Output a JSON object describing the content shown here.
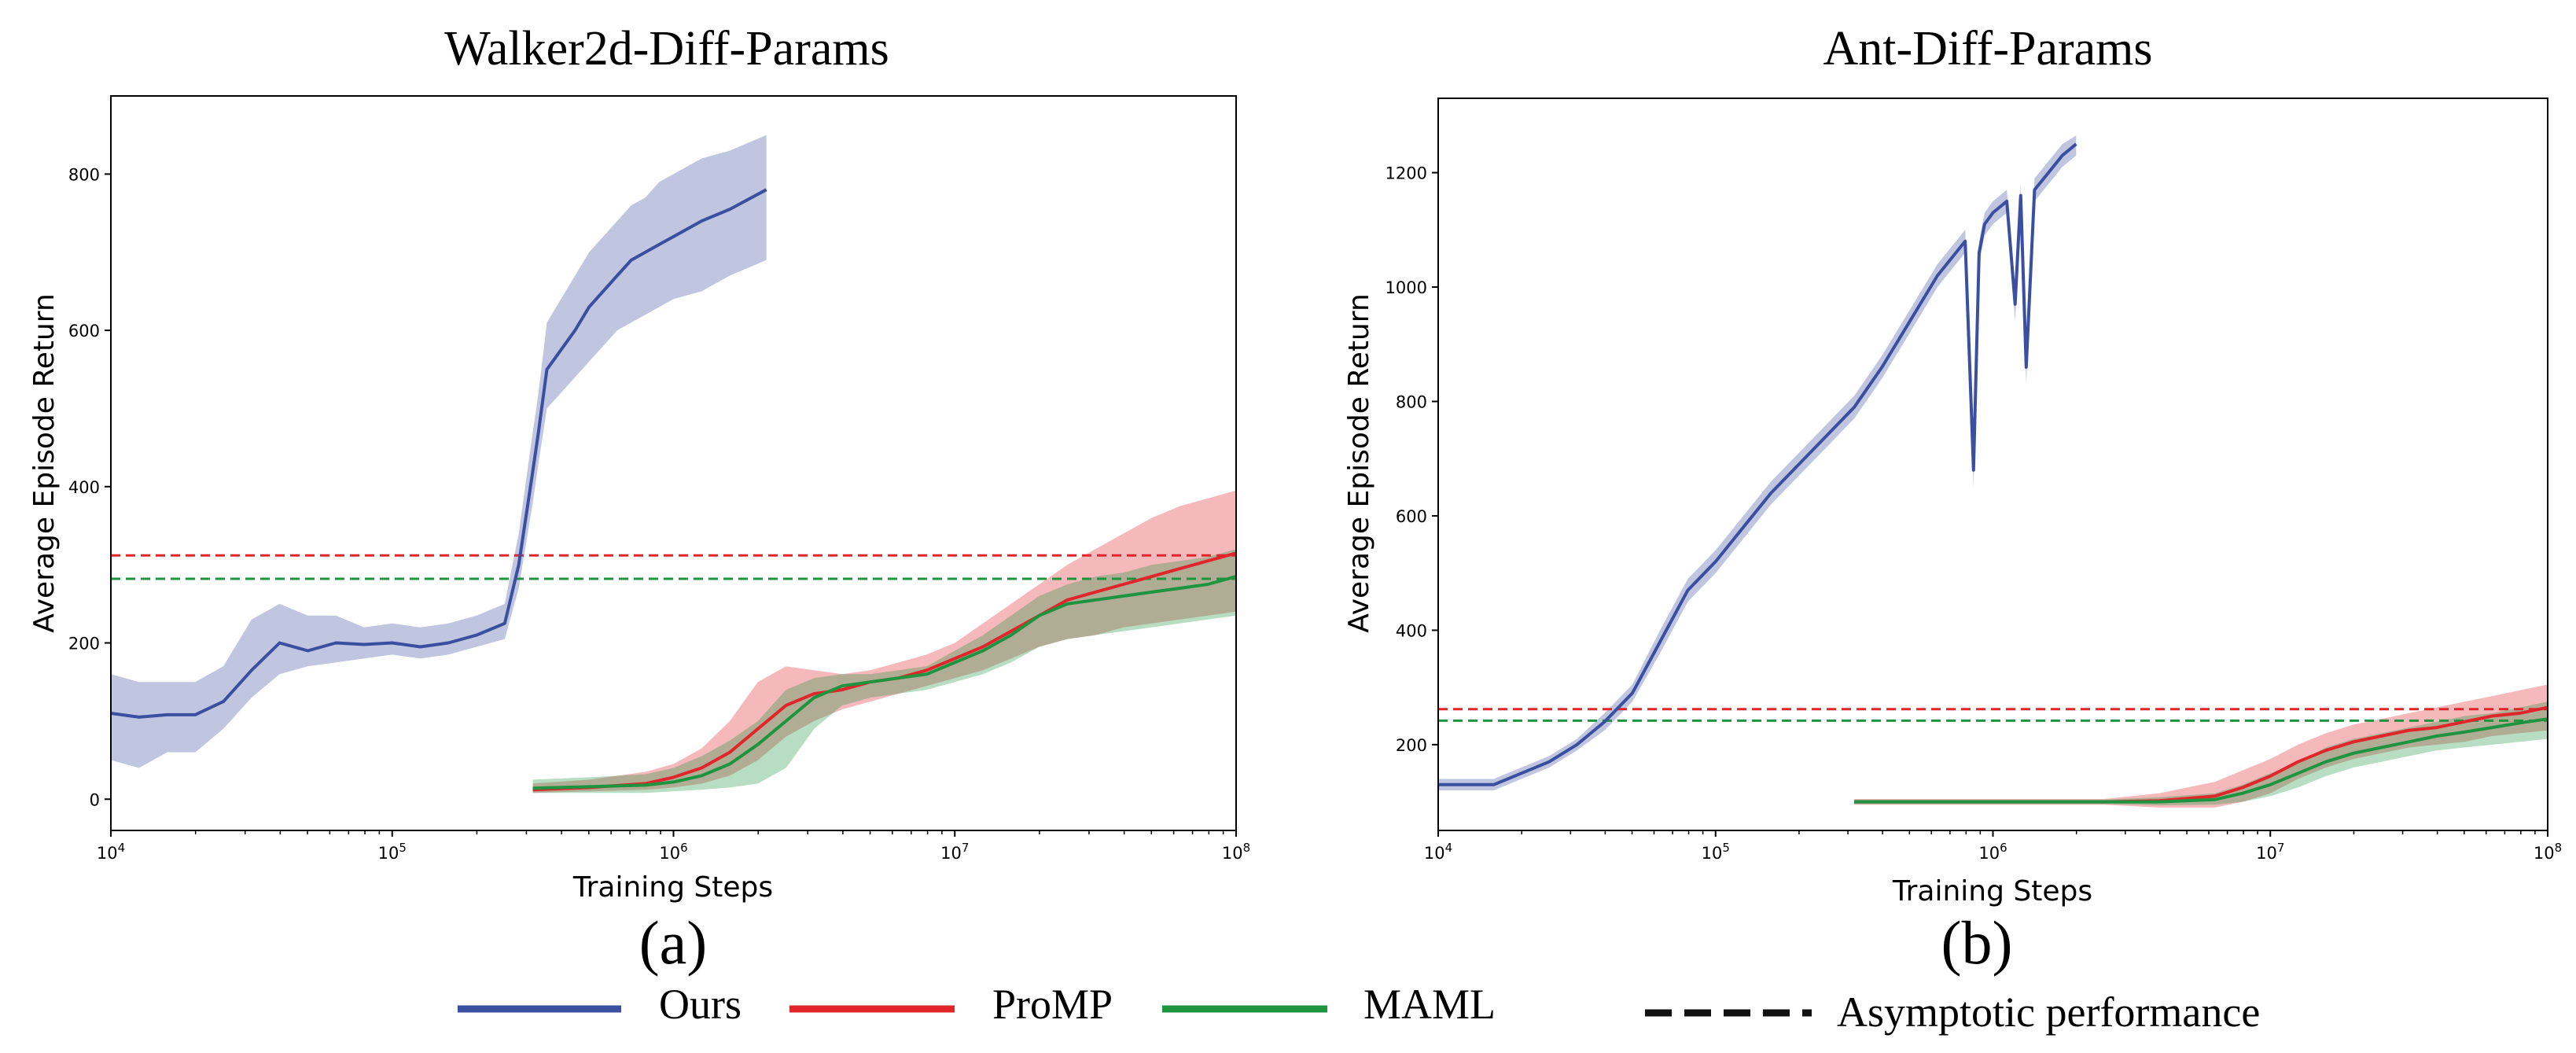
{
  "colors": {
    "ours": "#3a4fa0",
    "promp": "#e0262b",
    "maml": "#1e9440",
    "asymptotic_promp": "#e0262b",
    "asymptotic_maml": "#1e9440"
  },
  "legend": [
    {
      "key": "ours",
      "label": "Ours",
      "style": "solid",
      "color": "#3a4fa0"
    },
    {
      "key": "promp",
      "label": "ProMP",
      "style": "solid",
      "color": "#e0262b"
    },
    {
      "key": "maml",
      "label": "MAML",
      "style": "solid",
      "color": "#1e9440"
    },
    {
      "key": "asym",
      "label": "Asymptotic performance",
      "style": "dashed",
      "color": "#111111"
    }
  ],
  "chart_data": [
    {
      "type": "line",
      "title": "Walker2d-Diff-Params",
      "panel_label": "(a)",
      "xlabel": "Training Steps",
      "ylabel": "Average Episode Return",
      "xscale": "log",
      "xlim": [
        10000,
        100000000
      ],
      "ylim": [
        -40,
        900
      ],
      "xticks": [
        4,
        5,
        6,
        7,
        8
      ],
      "yticks": [
        0,
        200,
        400,
        600,
        800
      ],
      "grid": false,
      "series": [
        {
          "name": "Ours",
          "color_key": "ours",
          "log10_x": [
            4.0,
            4.1,
            4.2,
            4.3,
            4.4,
            4.5,
            4.6,
            4.7,
            4.8,
            4.9,
            5.0,
            5.1,
            5.2,
            5.3,
            5.4,
            5.45,
            5.5,
            5.52,
            5.55,
            5.6,
            5.65,
            5.7,
            5.75,
            5.8,
            5.85,
            5.9,
            5.95,
            6.0,
            6.1,
            6.2,
            6.33
          ],
          "y": [
            110,
            105,
            108,
            108,
            125,
            165,
            200,
            190,
            200,
            198,
            200,
            195,
            200,
            210,
            225,
            300,
            420,
            470,
            550,
            575,
            600,
            630,
            650,
            670,
            690,
            700,
            710,
            720,
            740,
            755,
            780
          ],
          "lo": [
            50,
            40,
            60,
            60,
            90,
            130,
            160,
            170,
            175,
            180,
            185,
            180,
            185,
            195,
            205,
            270,
            380,
            430,
            500,
            520,
            540,
            560,
            580,
            600,
            610,
            620,
            630,
            640,
            650,
            670,
            690
          ],
          "hi": [
            160,
            150,
            150,
            150,
            170,
            230,
            250,
            235,
            235,
            220,
            225,
            220,
            225,
            235,
            250,
            340,
            470,
            520,
            610,
            640,
            670,
            700,
            720,
            740,
            760,
            770,
            790,
            800,
            820,
            830,
            850
          ]
        },
        {
          "name": "ProMP",
          "color_key": "promp",
          "log10_x": [
            5.5,
            5.7,
            5.9,
            6.0,
            6.1,
            6.2,
            6.3,
            6.4,
            6.5,
            6.6,
            6.7,
            6.8,
            6.9,
            7.0,
            7.1,
            7.2,
            7.3,
            7.4,
            7.5,
            7.6,
            7.7,
            7.8,
            7.9,
            8.0
          ],
          "y": [
            12,
            15,
            20,
            28,
            40,
            60,
            90,
            120,
            135,
            140,
            150,
            155,
            165,
            180,
            195,
            215,
            235,
            255,
            265,
            275,
            285,
            295,
            305,
            315
          ],
          "lo": [
            8,
            10,
            12,
            15,
            20,
            30,
            50,
            80,
            100,
            115,
            125,
            135,
            145,
            155,
            165,
            180,
            195,
            205,
            210,
            220,
            225,
            230,
            235,
            240
          ],
          "hi": [
            20,
            25,
            35,
            45,
            65,
            100,
            150,
            170,
            165,
            160,
            165,
            175,
            185,
            200,
            225,
            250,
            275,
            300,
            320,
            340,
            360,
            375,
            385,
            395
          ]
        },
        {
          "name": "MAML",
          "color_key": "maml",
          "log10_x": [
            5.5,
            5.7,
            5.9,
            6.0,
            6.1,
            6.2,
            6.3,
            6.4,
            6.5,
            6.6,
            6.7,
            6.8,
            6.9,
            7.0,
            7.1,
            7.2,
            7.3,
            7.4,
            7.5,
            7.6,
            7.7,
            7.8,
            7.9,
            8.0
          ],
          "y": [
            14,
            16,
            18,
            22,
            30,
            45,
            70,
            100,
            130,
            145,
            150,
            155,
            160,
            175,
            190,
            210,
            235,
            250,
            255,
            260,
            265,
            270,
            275,
            285
          ],
          "lo": [
            8,
            8,
            8,
            10,
            12,
            15,
            20,
            40,
            90,
            120,
            130,
            135,
            140,
            150,
            160,
            175,
            195,
            205,
            210,
            215,
            220,
            225,
            230,
            235
          ],
          "hi": [
            25,
            28,
            32,
            40,
            55,
            75,
            100,
            140,
            155,
            160,
            160,
            165,
            170,
            190,
            210,
            235,
            260,
            275,
            285,
            290,
            300,
            305,
            310,
            320
          ]
        }
      ],
      "asymptotic": [
        {
          "name": "ProMP",
          "color_key": "asymptotic_promp",
          "y": 312
        },
        {
          "name": "MAML",
          "color_key": "asymptotic_maml",
          "y": 282
        }
      ]
    },
    {
      "type": "line",
      "title": "Ant-Diff-Params",
      "panel_label": "(b)",
      "xlabel": "Training Steps",
      "ylabel": "Average Episode Return",
      "xscale": "log",
      "xlim": [
        10000,
        100000000
      ],
      "ylim": [
        50,
        1330
      ],
      "xticks": [
        4,
        5,
        6,
        7,
        8
      ],
      "yticks": [
        200,
        400,
        600,
        800,
        1000,
        1200
      ],
      "grid": false,
      "series": [
        {
          "name": "Ours",
          "color_key": "ours",
          "log10_x": [
            4.0,
            4.1,
            4.2,
            4.3,
            4.4,
            4.5,
            4.6,
            4.7,
            4.8,
            4.9,
            5.0,
            5.1,
            5.2,
            5.3,
            5.4,
            5.5,
            5.6,
            5.7,
            5.8,
            5.9,
            5.93,
            5.95,
            5.97,
            6.0,
            6.05,
            6.08,
            6.1,
            6.12,
            6.15,
            6.2,
            6.25,
            6.3
          ],
          "y": [
            130,
            130,
            130,
            150,
            170,
            200,
            240,
            290,
            380,
            470,
            520,
            580,
            640,
            690,
            740,
            790,
            860,
            940,
            1020,
            1080,
            680,
            1060,
            1110,
            1130,
            1150,
            970,
            1160,
            860,
            1170,
            1200,
            1230,
            1250
          ],
          "lo": [
            120,
            120,
            120,
            140,
            160,
            190,
            225,
            275,
            360,
            450,
            500,
            560,
            620,
            670,
            720,
            770,
            840,
            920,
            1000,
            1060,
            650,
            1040,
            1090,
            1110,
            1130,
            940,
            1140,
            830,
            1150,
            1180,
            1210,
            1230
          ],
          "hi": [
            140,
            140,
            140,
            160,
            180,
            210,
            255,
            305,
            400,
            490,
            540,
            600,
            660,
            710,
            760,
            810,
            880,
            960,
            1040,
            1100,
            710,
            1080,
            1130,
            1150,
            1170,
            1000,
            1180,
            890,
            1190,
            1220,
            1250,
            1265
          ]
        },
        {
          "name": "ProMP",
          "color_key": "promp",
          "log10_x": [
            5.5,
            5.8,
            6.1,
            6.4,
            6.6,
            6.8,
            6.9,
            7.0,
            7.1,
            7.2,
            7.3,
            7.4,
            7.5,
            7.6,
            7.7,
            7.8,
            7.9,
            8.0
          ],
          "y": [
            100,
            100,
            100,
            100,
            102,
            110,
            125,
            145,
            170,
            190,
            205,
            215,
            225,
            230,
            240,
            250,
            255,
            265
          ],
          "lo": [
            95,
            95,
            95,
            95,
            90,
            90,
            100,
            115,
            140,
            160,
            175,
            185,
            195,
            200,
            205,
            215,
            220,
            225
          ],
          "hi": [
            105,
            105,
            105,
            105,
            115,
            135,
            155,
            175,
            200,
            220,
            235,
            245,
            255,
            265,
            275,
            285,
            295,
            305
          ]
        },
        {
          "name": "MAML",
          "color_key": "maml",
          "log10_x": [
            5.5,
            5.8,
            6.1,
            6.4,
            6.6,
            6.8,
            6.9,
            7.0,
            7.1,
            7.2,
            7.3,
            7.4,
            7.5,
            7.6,
            7.7,
            7.8,
            7.9,
            8.0
          ],
          "y": [
            100,
            100,
            100,
            100,
            100,
            104,
            115,
            130,
            150,
            170,
            185,
            195,
            205,
            215,
            222,
            230,
            238,
            245
          ],
          "lo": [
            96,
            96,
            96,
            96,
            94,
            95,
            100,
            110,
            125,
            145,
            160,
            170,
            180,
            190,
            195,
            200,
            205,
            210
          ],
          "hi": [
            104,
            104,
            104,
            104,
            108,
            115,
            130,
            150,
            170,
            195,
            210,
            220,
            230,
            240,
            250,
            255,
            265,
            275
          ]
        }
      ],
      "asymptotic": [
        {
          "name": "ProMP",
          "color_key": "asymptotic_promp",
          "y": 262
        },
        {
          "name": "MAML",
          "color_key": "asymptotic_maml",
          "y": 242
        }
      ]
    }
  ]
}
